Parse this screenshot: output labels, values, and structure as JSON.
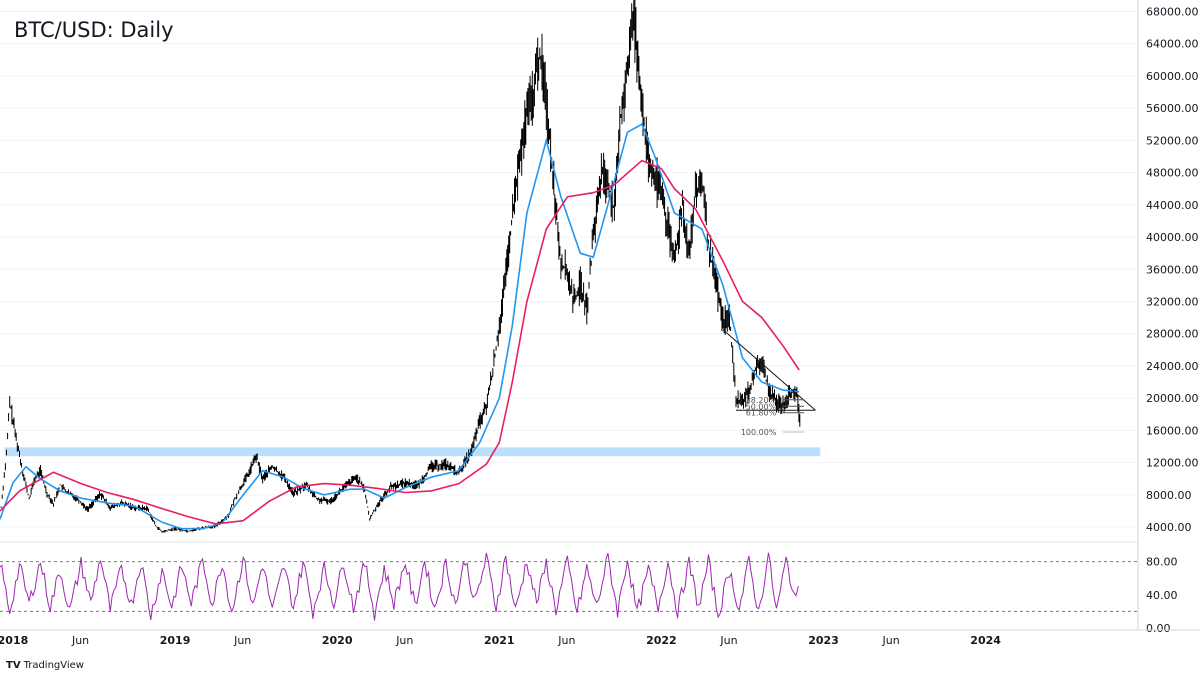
{
  "chart_data": {
    "type": "candlestick",
    "title": "BTC/USD: Daily",
    "price_axis": {
      "ticks": [
        "68000.00",
        "64000.00",
        "60000.00",
        "56000.00",
        "52000.00",
        "48000.00",
        "44000.00",
        "40000.00",
        "36000.00",
        "32000.00",
        "28000.00",
        "24000.00",
        "20000.00",
        "16000.00",
        "12000.00",
        "8000.00",
        "4000.00"
      ],
      "ylim": [
        2400,
        68800
      ]
    },
    "rsi_axis": {
      "ticks": [
        "80.00",
        "40.00",
        "0.00"
      ],
      "ylim": [
        0,
        100
      ],
      "levels": [
        80,
        20
      ]
    },
    "time_axis": {
      "labels": [
        {
          "label": "2018",
          "t": 2018.0,
          "year": true
        },
        {
          "label": "Jun",
          "t": 2018.417,
          "year": false
        },
        {
          "label": "2019",
          "t": 2019.0,
          "year": true
        },
        {
          "label": "Jun",
          "t": 2019.417,
          "year": false
        },
        {
          "label": "2020",
          "t": 2020.0,
          "year": true
        },
        {
          "label": "Jun",
          "t": 2020.417,
          "year": false
        },
        {
          "label": "2021",
          "t": 2021.0,
          "year": true
        },
        {
          "label": "Jun",
          "t": 2021.417,
          "year": false
        },
        {
          "label": "2022",
          "t": 2022.0,
          "year": true
        },
        {
          "label": "Jun",
          "t": 2022.417,
          "year": false
        },
        {
          "label": "2023",
          "t": 2023.0,
          "year": true
        },
        {
          "label": "Jun",
          "t": 2023.417,
          "year": false
        },
        {
          "label": "2024",
          "t": 2024.0,
          "year": true
        }
      ],
      "xlim": [
        2017.92,
        2024.94
      ]
    },
    "price_path": [
      [
        2017.92,
        5200
      ],
      [
        2017.96,
        13000
      ],
      [
        2017.98,
        19500
      ],
      [
        2018.02,
        15000
      ],
      [
        2018.06,
        11000
      ],
      [
        2018.1,
        7500
      ],
      [
        2018.13,
        9800
      ],
      [
        2018.17,
        11000
      ],
      [
        2018.21,
        8200
      ],
      [
        2018.25,
        6900
      ],
      [
        2018.29,
        9200
      ],
      [
        2018.33,
        8400
      ],
      [
        2018.4,
        7500
      ],
      [
        2018.46,
        6200
      ],
      [
        2018.54,
        8100
      ],
      [
        2018.6,
        6400
      ],
      [
        2018.67,
        7000
      ],
      [
        2018.75,
        6400
      ],
      [
        2018.83,
        6300
      ],
      [
        2018.88,
        4200
      ],
      [
        2018.92,
        3400
      ],
      [
        2019.0,
        3800
      ],
      [
        2019.08,
        3500
      ],
      [
        2019.17,
        3900
      ],
      [
        2019.25,
        4100
      ],
      [
        2019.33,
        5500
      ],
      [
        2019.38,
        8000
      ],
      [
        2019.45,
        10500
      ],
      [
        2019.5,
        12800
      ],
      [
        2019.54,
        10000
      ],
      [
        2019.6,
        11500
      ],
      [
        2019.67,
        10200
      ],
      [
        2019.73,
        8200
      ],
      [
        2019.81,
        9200
      ],
      [
        2019.88,
        7400
      ],
      [
        2019.96,
        7200
      ],
      [
        2020.04,
        8900
      ],
      [
        2020.12,
        10200
      ],
      [
        2020.17,
        8600
      ],
      [
        2020.2,
        5000
      ],
      [
        2020.25,
        6800
      ],
      [
        2020.33,
        9000
      ],
      [
        2020.42,
        9500
      ],
      [
        2020.5,
        9200
      ],
      [
        2020.58,
        11500
      ],
      [
        2020.67,
        11800
      ],
      [
        2020.75,
        10700
      ],
      [
        2020.83,
        13500
      ],
      [
        2020.87,
        16500
      ],
      [
        2020.92,
        19000
      ],
      [
        2020.96,
        23500
      ],
      [
        2021.0,
        29000
      ],
      [
        2021.04,
        35000
      ],
      [
        2021.1,
        46000
      ],
      [
        2021.17,
        55000
      ],
      [
        2021.21,
        58000
      ],
      [
        2021.25,
        63000
      ],
      [
        2021.29,
        57000
      ],
      [
        2021.33,
        48000
      ],
      [
        2021.38,
        37000
      ],
      [
        2021.42,
        35500
      ],
      [
        2021.46,
        32000
      ],
      [
        2021.5,
        34000
      ],
      [
        2021.54,
        31000
      ],
      [
        2021.58,
        40000
      ],
      [
        2021.63,
        48000
      ],
      [
        2021.67,
        47000
      ],
      [
        2021.71,
        43000
      ],
      [
        2021.75,
        55000
      ],
      [
        2021.79,
        61000
      ],
      [
        2021.83,
        67500
      ],
      [
        2021.88,
        57000
      ],
      [
        2021.92,
        49000
      ],
      [
        2021.96,
        47000
      ],
      [
        2022.0,
        46000
      ],
      [
        2022.04,
        41000
      ],
      [
        2022.08,
        37000
      ],
      [
        2022.13,
        44000
      ],
      [
        2022.17,
        38000
      ],
      [
        2022.21,
        45000
      ],
      [
        2022.25,
        47000
      ],
      [
        2022.29,
        39000
      ],
      [
        2022.33,
        35000
      ],
      [
        2022.38,
        29500
      ],
      [
        2022.42,
        30000
      ],
      [
        2022.46,
        20000
      ],
      [
        2022.5,
        19500
      ],
      [
        2022.54,
        21000
      ],
      [
        2022.58,
        23500
      ],
      [
        2022.62,
        24500
      ],
      [
        2022.66,
        21000
      ],
      [
        2022.71,
        19500
      ],
      [
        2022.75,
        19200
      ],
      [
        2022.79,
        20500
      ],
      [
        2022.83,
        21000
      ],
      [
        2022.86,
        16500
      ]
    ],
    "series": [
      {
        "name": "",
        "color": "#2196f3",
        "points": [
          [
            2017.92,
            5000
          ],
          [
            2018.0,
            9500
          ],
          [
            2018.08,
            11500
          ],
          [
            2018.17,
            10000
          ],
          [
            2018.29,
            8500
          ],
          [
            2018.42,
            7600
          ],
          [
            2018.58,
            7000
          ],
          [
            2018.75,
            6600
          ],
          [
            2018.92,
            4600
          ],
          [
            2019.04,
            3800
          ],
          [
            2019.17,
            3800
          ],
          [
            2019.29,
            4500
          ],
          [
            2019.42,
            8000
          ],
          [
            2019.54,
            11000
          ],
          [
            2019.67,
            10200
          ],
          [
            2019.79,
            8800
          ],
          [
            2019.92,
            8000
          ],
          [
            2020.08,
            8700
          ],
          [
            2020.17,
            8700
          ],
          [
            2020.29,
            7600
          ],
          [
            2020.42,
            8900
          ],
          [
            2020.58,
            10200
          ],
          [
            2020.75,
            11000
          ],
          [
            2020.88,
            14500
          ],
          [
            2021.0,
            20000
          ],
          [
            2021.08,
            29000
          ],
          [
            2021.17,
            43000
          ],
          [
            2021.29,
            52000
          ],
          [
            2021.38,
            45000
          ],
          [
            2021.5,
            38000
          ],
          [
            2021.58,
            37500
          ],
          [
            2021.67,
            44000
          ],
          [
            2021.79,
            53000
          ],
          [
            2021.88,
            54000
          ],
          [
            2021.96,
            50000
          ],
          [
            2022.08,
            43000
          ],
          [
            2022.25,
            41000
          ],
          [
            2022.38,
            34000
          ],
          [
            2022.5,
            25000
          ],
          [
            2022.62,
            22000
          ],
          [
            2022.75,
            21000
          ],
          [
            2022.85,
            20800
          ]
        ]
      },
      {
        "name": "",
        "color": "#e91e63",
        "points": [
          [
            2017.92,
            6000
          ],
          [
            2018.04,
            8500
          ],
          [
            2018.25,
            10800
          ],
          [
            2018.42,
            9400
          ],
          [
            2018.58,
            8300
          ],
          [
            2018.75,
            7400
          ],
          [
            2018.92,
            6300
          ],
          [
            2019.08,
            5300
          ],
          [
            2019.25,
            4400
          ],
          [
            2019.42,
            4800
          ],
          [
            2019.58,
            7200
          ],
          [
            2019.75,
            9000
          ],
          [
            2019.92,
            9400
          ],
          [
            2020.08,
            9200
          ],
          [
            2020.25,
            8800
          ],
          [
            2020.42,
            8300
          ],
          [
            2020.58,
            8500
          ],
          [
            2020.75,
            9400
          ],
          [
            2020.92,
            11800
          ],
          [
            2021.0,
            14500
          ],
          [
            2021.08,
            22000
          ],
          [
            2021.17,
            32000
          ],
          [
            2021.29,
            41000
          ],
          [
            2021.42,
            45000
          ],
          [
            2021.58,
            45500
          ],
          [
            2021.71,
            46500
          ],
          [
            2021.88,
            49500
          ],
          [
            2022.0,
            48500
          ],
          [
            2022.08,
            46000
          ],
          [
            2022.21,
            43500
          ],
          [
            2022.38,
            37000
          ],
          [
            2022.5,
            32000
          ],
          [
            2022.62,
            30000
          ],
          [
            2022.75,
            26500
          ],
          [
            2022.85,
            23500
          ]
        ]
      }
    ],
    "support_zone": [
      12800,
      13900
    ],
    "trendlines": [
      [
        [
          2022.38,
          28500
        ],
        [
          2022.95,
          18500
        ]
      ],
      [
        [
          2022.46,
          18500
        ],
        [
          2022.95,
          18500
        ]
      ]
    ],
    "fib_labels": [
      {
        "label": "38.20%",
        "price": 19800
      },
      {
        "label": "50.00%",
        "price": 19000
      },
      {
        "label": "61.80%",
        "price": 18200
      },
      {
        "label": "100.00%",
        "price": 15800
      }
    ],
    "rsi_path": [
      [
        2017.92,
        80
      ],
      [
        2017.98,
        20
      ],
      [
        2018.04,
        75
      ],
      [
        2018.1,
        30
      ],
      [
        2018.17,
        80
      ],
      [
        2018.23,
        25
      ],
      [
        2018.29,
        70
      ],
      [
        2018.35,
        20
      ],
      [
        2018.42,
        78
      ],
      [
        2018.48,
        30
      ],
      [
        2018.54,
        85
      ],
      [
        2018.6,
        22
      ],
      [
        2018.67,
        72
      ],
      [
        2018.73,
        28
      ],
      [
        2018.79,
        80
      ],
      [
        2018.85,
        15
      ],
      [
        2018.92,
        70
      ],
      [
        2018.98,
        25
      ],
      [
        2019.04,
        75
      ],
      [
        2019.1,
        30
      ],
      [
        2019.17,
        82
      ],
      [
        2019.23,
        28
      ],
      [
        2019.29,
        80
      ],
      [
        2019.35,
        20
      ],
      [
        2019.42,
        85
      ],
      [
        2019.48,
        25
      ],
      [
        2019.54,
        78
      ],
      [
        2019.6,
        20
      ],
      [
        2019.67,
        75
      ],
      [
        2019.73,
        25
      ],
      [
        2019.79,
        80
      ],
      [
        2019.85,
        20
      ],
      [
        2019.92,
        72
      ],
      [
        2019.98,
        30
      ],
      [
        2020.04,
        80
      ],
      [
        2020.1,
        25
      ],
      [
        2020.17,
        78
      ],
      [
        2020.23,
        18
      ],
      [
        2020.29,
        72
      ],
      [
        2020.35,
        30
      ],
      [
        2020.42,
        80
      ],
      [
        2020.48,
        25
      ],
      [
        2020.54,
        82
      ],
      [
        2020.6,
        22
      ],
      [
        2020.67,
        78
      ],
      [
        2020.73,
        28
      ],
      [
        2020.79,
        84
      ],
      [
        2020.85,
        30
      ],
      [
        2020.92,
        85
      ],
      [
        2020.98,
        25
      ],
      [
        2021.04,
        86
      ],
      [
        2021.1,
        20
      ],
      [
        2021.17,
        82
      ],
      [
        2021.23,
        30
      ],
      [
        2021.29,
        78
      ],
      [
        2021.35,
        22
      ],
      [
        2021.42,
        80
      ],
      [
        2021.48,
        18
      ],
      [
        2021.54,
        72
      ],
      [
        2021.6,
        25
      ],
      [
        2021.67,
        85
      ],
      [
        2021.73,
        20
      ],
      [
        2021.79,
        84
      ],
      [
        2021.85,
        18
      ],
      [
        2021.92,
        70
      ],
      [
        2021.98,
        25
      ],
      [
        2022.04,
        80
      ],
      [
        2022.1,
        20
      ],
      [
        2022.17,
        78
      ],
      [
        2022.23,
        25
      ],
      [
        2022.29,
        80
      ],
      [
        2022.35,
        15
      ],
      [
        2022.42,
        70
      ],
      [
        2022.48,
        22
      ],
      [
        2022.54,
        80
      ],
      [
        2022.6,
        18
      ],
      [
        2022.66,
        88
      ],
      [
        2022.71,
        20
      ],
      [
        2022.77,
        82
      ],
      [
        2022.83,
        30
      ],
      [
        2022.86,
        70
      ]
    ]
  },
  "branding": {
    "label": "TradingView",
    "logo_text": "TV"
  }
}
